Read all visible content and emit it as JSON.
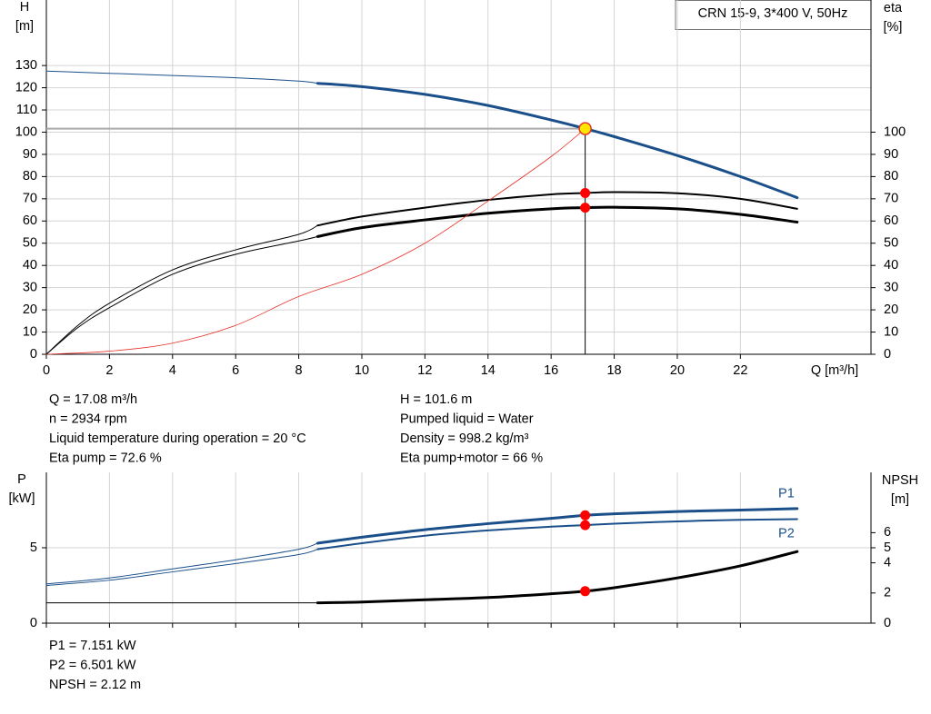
{
  "chart_data": [
    {
      "type": "line",
      "title": "CRN 15-9, 3*400 V, 50Hz",
      "ylabel": [
        "H",
        "[m]"
      ],
      "y2label": [
        "eta",
        "[%]"
      ],
      "xlabel": "Q [m³/h]",
      "xlim": [
        0,
        26.14
      ],
      "xticks": [
        0,
        2,
        4,
        6,
        8,
        10,
        12,
        14,
        16,
        18,
        20,
        22
      ],
      "ylim": [
        0,
        159.5
      ],
      "yticks": [
        0,
        10,
        20,
        30,
        40,
        50,
        60,
        70,
        80,
        90,
        100,
        110,
        120,
        130
      ],
      "y2lim": [
        0,
        159.5
      ],
      "y2ticks": [
        0,
        10,
        20,
        30,
        40,
        50,
        60,
        70,
        80,
        90,
        100
      ],
      "grid": true,
      "duty_range": [
        8.6,
        23.8
      ],
      "operating_point": {
        "x": 17.08
      },
      "x": [
        0,
        1,
        2,
        4,
        6,
        8,
        8.6,
        10,
        12,
        14,
        16,
        17.08,
        18,
        20,
        22,
        23.8
      ],
      "series": [
        {
          "color": "#1a4f8a",
          "width": 3,
          "marker": "#ffe600",
          "values": [
            127.5,
            127,
            126.5,
            125.5,
            124.5,
            123,
            122,
            120.5,
            117,
            112,
            105.5,
            101.6,
            98,
            89.5,
            80,
            70.5
          ]
        },
        {
          "color": "#000000",
          "width": 2,
          "axis": "y2",
          "marker": "#ff0000",
          "values": [
            0,
            13,
            23,
            38,
            47,
            54,
            58,
            62,
            66,
            69.5,
            72,
            72.6,
            73,
            72.5,
            70,
            65.5
          ]
        },
        {
          "color": "#000000",
          "width": 3,
          "axis": "y2",
          "marker": "#ff0000",
          "values": [
            0,
            12,
            21,
            36,
            45,
            51,
            53,
            57,
            60.5,
            63.5,
            65.5,
            66,
            66.2,
            65.5,
            63,
            59.5
          ]
        },
        {
          "color": "#e8332a",
          "width": 0.8,
          "x": [
            0,
            2,
            4,
            6,
            8,
            10,
            12,
            14,
            16,
            17.08
          ],
          "values": [
            0,
            1.4,
            5,
            13,
            26,
            36,
            50,
            69,
            89,
            101.6
          ]
        }
      ]
    },
    {
      "type": "line",
      "ylabel": [
        "P",
        "[kW]"
      ],
      "y2label": [
        "NPSH",
        "[m]"
      ],
      "xlim": [
        0,
        26.14
      ],
      "xticks": [
        0,
        2,
        4,
        6,
        8,
        10,
        12,
        14,
        16,
        18,
        20,
        22
      ],
      "ylim": [
        0,
        10
      ],
      "yticks": [
        0,
        5
      ],
      "y2lim": [
        0,
        10
      ],
      "y2ticks": [
        0,
        2,
        4,
        5,
        6
      ],
      "grid": true,
      "duty_range": [
        8.6,
        23.8
      ],
      "operating_point": {
        "x": 17.08
      },
      "x": [
        0,
        2,
        4,
        6,
        8,
        8.6,
        10,
        12,
        14,
        16,
        17.08,
        18,
        20,
        22,
        23.8
      ],
      "series": [
        {
          "name": "P1",
          "color": "#1a4f8a",
          "width": 3,
          "marker": "#ff0000",
          "label_side": "above",
          "values": [
            2.6,
            3.0,
            3.6,
            4.2,
            4.9,
            5.3,
            5.7,
            6.2,
            6.6,
            6.95,
            7.151,
            7.25,
            7.4,
            7.5,
            7.6
          ]
        },
        {
          "name": "P2",
          "color": "#1a4f8a",
          "width": 2,
          "marker": "#ff0000",
          "label_side": "below",
          "values": [
            2.5,
            2.85,
            3.4,
            3.95,
            4.55,
            4.9,
            5.3,
            5.8,
            6.15,
            6.4,
            6.501,
            6.6,
            6.75,
            6.85,
            6.9
          ]
        },
        {
          "color": "#000000",
          "width": 3,
          "axis": "y2",
          "marker": "#ff0000",
          "values": [
            1.35,
            1.35,
            1.35,
            1.35,
            1.35,
            1.35,
            1.4,
            1.55,
            1.7,
            1.95,
            2.12,
            2.35,
            3.0,
            3.8,
            4.75
          ]
        }
      ]
    }
  ],
  "info_top": {
    "left": [
      "Q = 17.08 m³/h",
      "n = 2934 rpm",
      "Liquid temperature during operation = 20 °C",
      "Eta pump = 72.6 %"
    ],
    "right": [
      "H = 101.6 m",
      "Pumped liquid = Water",
      "Density = 998.2 kg/m³",
      "Eta pump+motor = 66 %"
    ]
  },
  "info_bottom": [
    "P1 = 7.151 kW",
    "P2 = 6.501 kW",
    "NPSH = 2.12 m"
  ]
}
